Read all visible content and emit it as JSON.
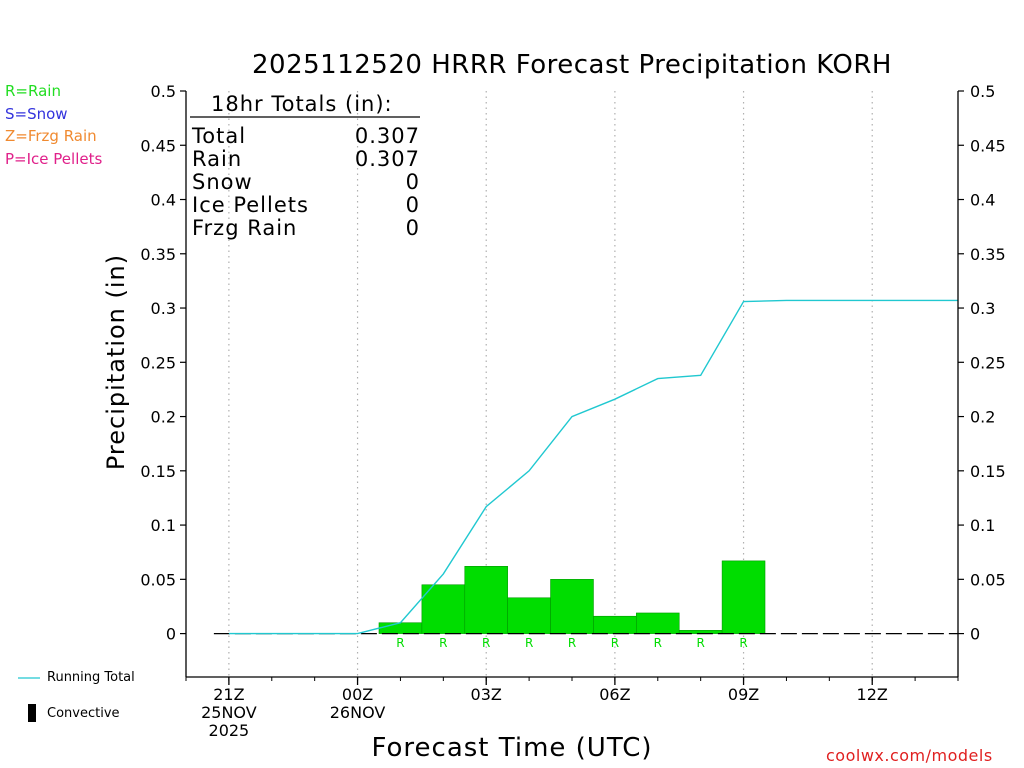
{
  "title": "2025112520 HRRR Forecast Precipitation KORH",
  "watermark": "coolwx.com/models",
  "precip_types": [
    {
      "label": "R=Rain",
      "color": "#22dd22"
    },
    {
      "label": "S=Snow",
      "color": "#3333dd"
    },
    {
      "label": "Z=Frzg Rain",
      "color": "#f08a30"
    },
    {
      "label": "P=Ice Pellets",
      "color": "#e0208a"
    }
  ],
  "legend": {
    "running_total": "Running Total",
    "convective": "Convective"
  },
  "totals": {
    "header": "18hr Totals (in):",
    "rows": [
      {
        "label": "Total",
        "value": "0.307"
      },
      {
        "label": "Rain",
        "value": "0.307"
      },
      {
        "label": "Snow",
        "value": "0"
      },
      {
        "label": "Ice Pellets",
        "value": "0"
      },
      {
        "label": "Frzg Rain",
        "value": "0"
      }
    ]
  },
  "chart_data": {
    "type": "bar",
    "title": "2025112520 HRRR Forecast Precipitation KORH",
    "xlabel": "Forecast Time (UTC)",
    "ylabel": "Precipitation (in)",
    "ylim": [
      -0.04,
      0.5
    ],
    "yticks": [
      "0",
      "0.05",
      "0.1",
      "0.15",
      "0.2",
      "0.25",
      "0.3",
      "0.35",
      "0.4",
      "0.45",
      "0.5"
    ],
    "xlim_hours": [
      -1,
      17
    ],
    "xticks": [
      {
        "hour": 0,
        "label": [
          "21Z",
          "25NOV",
          "2025"
        ]
      },
      {
        "hour": 3,
        "label": [
          "00Z",
          "26NOV"
        ]
      },
      {
        "hour": 6,
        "label": [
          "03Z"
        ]
      },
      {
        "hour": 9,
        "label": [
          "06Z"
        ]
      },
      {
        "hour": 12,
        "label": [
          "09Z"
        ]
      },
      {
        "hour": 15,
        "label": [
          "12Z"
        ]
      }
    ],
    "hourly_precip": {
      "hours": [
        4,
        5,
        6,
        7,
        8,
        9,
        10,
        11,
        12
      ],
      "values": [
        0.01,
        0.045,
        0.062,
        0.033,
        0.05,
        0.016,
        0.019,
        0.003,
        0.067
      ],
      "type_letters": [
        "R",
        "R",
        "R",
        "R",
        "R",
        "R",
        "R",
        "R",
        "R"
      ]
    },
    "running_total": {
      "hours": [
        0,
        1,
        2,
        3,
        4,
        5,
        6,
        7,
        8,
        9,
        10,
        11,
        12,
        13,
        14,
        15,
        16,
        17
      ],
      "values": [
        0,
        0,
        0,
        0,
        0.01,
        0.055,
        0.117,
        0.15,
        0.2,
        0.216,
        0.235,
        0.238,
        0.306,
        0.307,
        0.307,
        0.307,
        0.307,
        0.307
      ]
    },
    "colors": {
      "rain": "#00dd00",
      "running_total": "#20c8d0",
      "grid": "#b0b0b0",
      "convective": "#000000"
    },
    "grid": true
  }
}
